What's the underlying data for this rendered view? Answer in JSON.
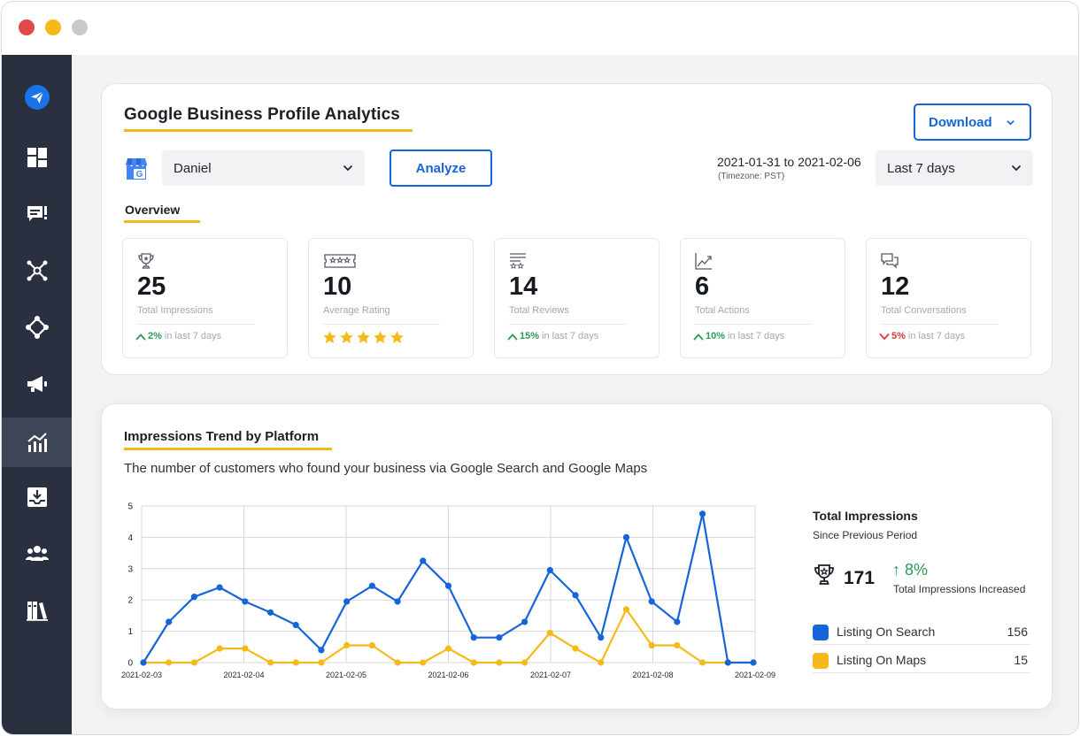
{
  "window": {
    "controls": [
      "close",
      "minimize",
      "zoom"
    ]
  },
  "sidebar": {
    "items": [
      {
        "icon": "paper-plane-logo-icon"
      },
      {
        "icon": "dashboard-grid-icon"
      },
      {
        "icon": "message-alert-icon"
      },
      {
        "icon": "network-hub-icon"
      },
      {
        "icon": "integration-diamond-icon"
      },
      {
        "icon": "megaphone-icon"
      },
      {
        "icon": "analytics-chart-icon",
        "active": true
      },
      {
        "icon": "inbox-download-icon"
      },
      {
        "icon": "team-users-icon"
      },
      {
        "icon": "library-books-icon"
      }
    ]
  },
  "header": {
    "title": "Google Business Profile Analytics",
    "download_label": "Download"
  },
  "filters": {
    "profile": "Daniel",
    "analyze_label": "Analyze",
    "date_range": "2021-01-31 to 2021-02-06",
    "timezone": "(Timezone: PST)",
    "range_option": "Last 7 days"
  },
  "overview": {
    "label": "Overview",
    "stats": [
      {
        "icon": "trophy-icon",
        "value": "25",
        "label": "Total Impressions",
        "change": "2%",
        "direction": "up",
        "period": "in last 7 days"
      },
      {
        "icon": "rating-badge-icon",
        "value": "10",
        "label": "Average Rating",
        "stars": 5
      },
      {
        "icon": "reviews-list-icon",
        "value": "14",
        "label": "Total Reviews",
        "change": "15%",
        "direction": "up",
        "period": "in last 7 days"
      },
      {
        "icon": "trend-line-icon",
        "value": "6",
        "label": "Total Actions",
        "change": "10%",
        "direction": "up",
        "period": "in last 7 days"
      },
      {
        "icon": "conversation-icon",
        "value": "12",
        "label": "Total Conversations",
        "change": "5%",
        "direction": "down",
        "period": "in last 7 days"
      }
    ]
  },
  "impressions": {
    "title": "Impressions Trend by Platform",
    "description": "The number of customers who found your business via Google Search and Google Maps",
    "summary": {
      "title": "Total Impressions",
      "subtitle": "Since Previous Period",
      "total": "171",
      "change": "↑ 8%",
      "change_label": "Total Impressions Increased"
    },
    "legend": [
      {
        "name": "Listing On Search",
        "value": "156",
        "color": "#1565d8"
      },
      {
        "name": "Listing On Maps",
        "value": "15",
        "color": "#f5b919"
      }
    ]
  },
  "chart_data": {
    "type": "line",
    "x_tick_labels": [
      "2021-02-03",
      "2021-02-04",
      "2021-02-05",
      "2021-02-06",
      "2021-02-07",
      "2021-02-08",
      "2021-02-09"
    ],
    "ylim": [
      0,
      5
    ],
    "yticks": [
      0,
      1,
      2,
      3,
      4,
      5
    ],
    "grid": true,
    "series": [
      {
        "color": "#1565d8",
        "values": [
          0,
          1.3,
          2.1,
          2.4,
          1.95,
          1.6,
          1.2,
          0.4,
          1.95,
          2.45,
          1.95,
          3.25,
          2.45,
          0.8,
          0.8,
          1.3,
          2.95,
          2.15,
          0.8,
          4.0,
          1.95,
          1.3,
          4.75,
          0,
          0
        ]
      },
      {
        "color": "#f5b919",
        "values": [
          0,
          0,
          0,
          0.45,
          0.45,
          0,
          0,
          0,
          0.55,
          0.55,
          0,
          0,
          0.45,
          0,
          0,
          0,
          0.95,
          0.45,
          0,
          1.7,
          0.55,
          0.55,
          0,
          0,
          0
        ]
      }
    ]
  }
}
